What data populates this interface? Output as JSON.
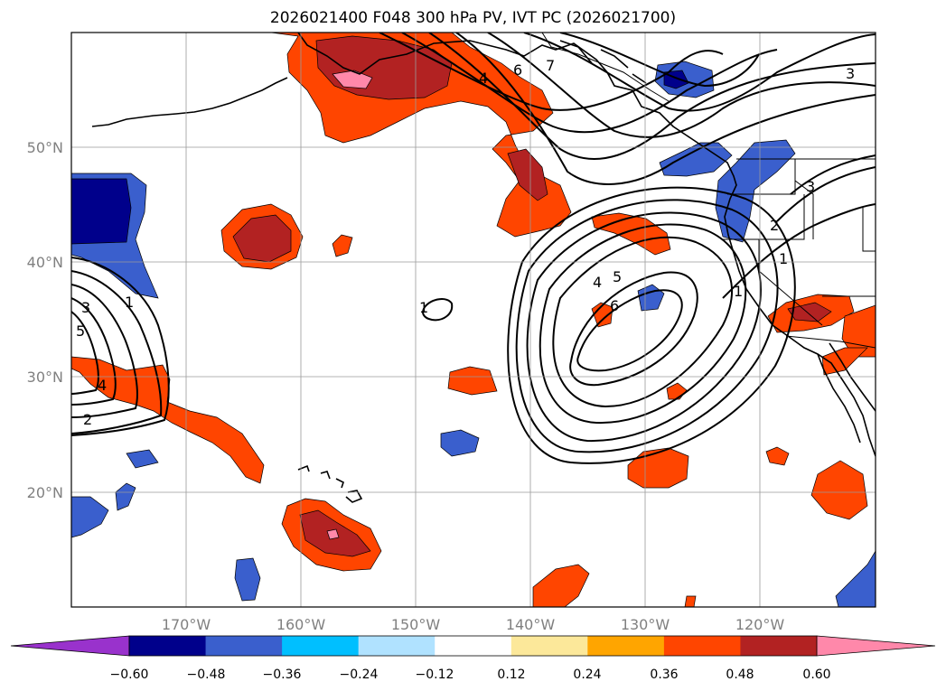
{
  "title": "2026021400 F048 300 hPa PV, IVT PC (2026021700)",
  "longitude_labels": [
    "170°W",
    "160°W",
    "150°W",
    "140°W",
    "130°W",
    "120°W"
  ],
  "latitude_labels": [
    "50°N",
    "40°N",
    "30°N",
    "20°N"
  ],
  "colorbar": {
    "ticks": [
      "−0.60",
      "−0.48",
      "−0.36",
      "−0.24",
      "−0.12",
      "0.12",
      "0.24",
      "0.36",
      "0.48",
      "0.60"
    ],
    "colors": [
      "#9932cc",
      "#00008b",
      "#3a5fcd",
      "#00bfff",
      "#b0e2ff",
      "#ffffff",
      "#fce89a",
      "#ffa500",
      "#ff4500",
      "#b22222",
      "#ff88aa"
    ]
  },
  "contour_labels": [
    "7",
    "6",
    "4",
    "3",
    "3",
    "2",
    "1",
    "1",
    "4",
    "5",
    "6",
    "3",
    "5",
    "4",
    "2",
    "1",
    "1"
  ]
}
